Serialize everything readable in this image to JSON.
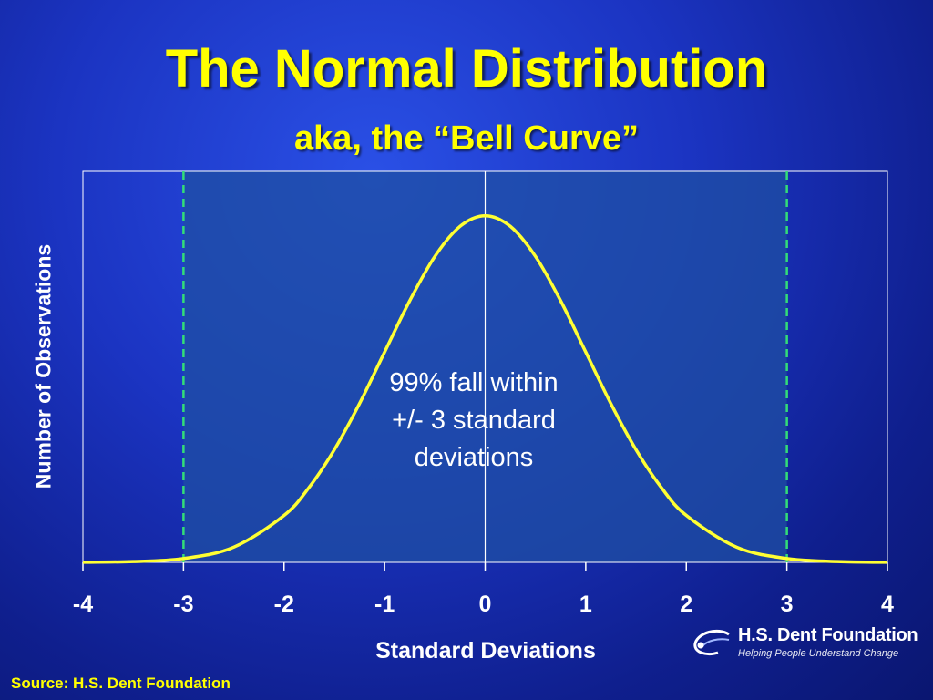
{
  "slide": {
    "title": "The Normal Distribution",
    "subtitle": "aka, the “Bell Curve”",
    "source": "Source: H.S. Dent Foundation"
  },
  "logo": {
    "name": "H.S. Dent Foundation",
    "tagline": "Helping People Understand Change"
  },
  "colors": {
    "title": "#ffff00",
    "curve": "#ffff33",
    "dashed_lines": "#33dd77",
    "plot_fill": "#1f4fa3",
    "axis": "#ffffff"
  },
  "chart_data": {
    "type": "line",
    "title": "",
    "xlabel": "Standard Deviations",
    "ylabel": "Number of Observations",
    "xlim": [
      -4,
      4
    ],
    "ylim": [
      0,
      0.45
    ],
    "x_ticks": [
      "-4",
      "-3",
      "-2",
      "-1",
      "0",
      "1",
      "2",
      "3",
      "4"
    ],
    "series": [
      {
        "x": [
          -4,
          -3.5,
          -3,
          -2.5,
          -2,
          -1.75,
          -1.5,
          -1.25,
          -1,
          -0.75,
          -0.5,
          -0.25,
          0,
          0.25,
          0.5,
          0.75,
          1,
          1.25,
          1.5,
          1.75,
          2,
          2.5,
          3,
          3.5,
          4
        ],
        "y": [
          0.0001,
          0.0009,
          0.0044,
          0.0175,
          0.054,
          0.0863,
          0.1295,
          0.1826,
          0.242,
          0.3011,
          0.3521,
          0.3867,
          0.3989,
          0.3867,
          0.3521,
          0.3011,
          0.242,
          0.1826,
          0.1295,
          0.0863,
          0.054,
          0.0175,
          0.0044,
          0.0009,
          0.0001
        ]
      }
    ],
    "reference_lines": [
      {
        "x": -3,
        "style": "dashed"
      },
      {
        "x": 0,
        "style": "solid"
      },
      {
        "x": 3,
        "style": "dashed"
      }
    ],
    "shaded_region": [
      -3,
      3
    ],
    "annotation": "99% fall within +/- 3 standard deviations",
    "grid": false
  }
}
